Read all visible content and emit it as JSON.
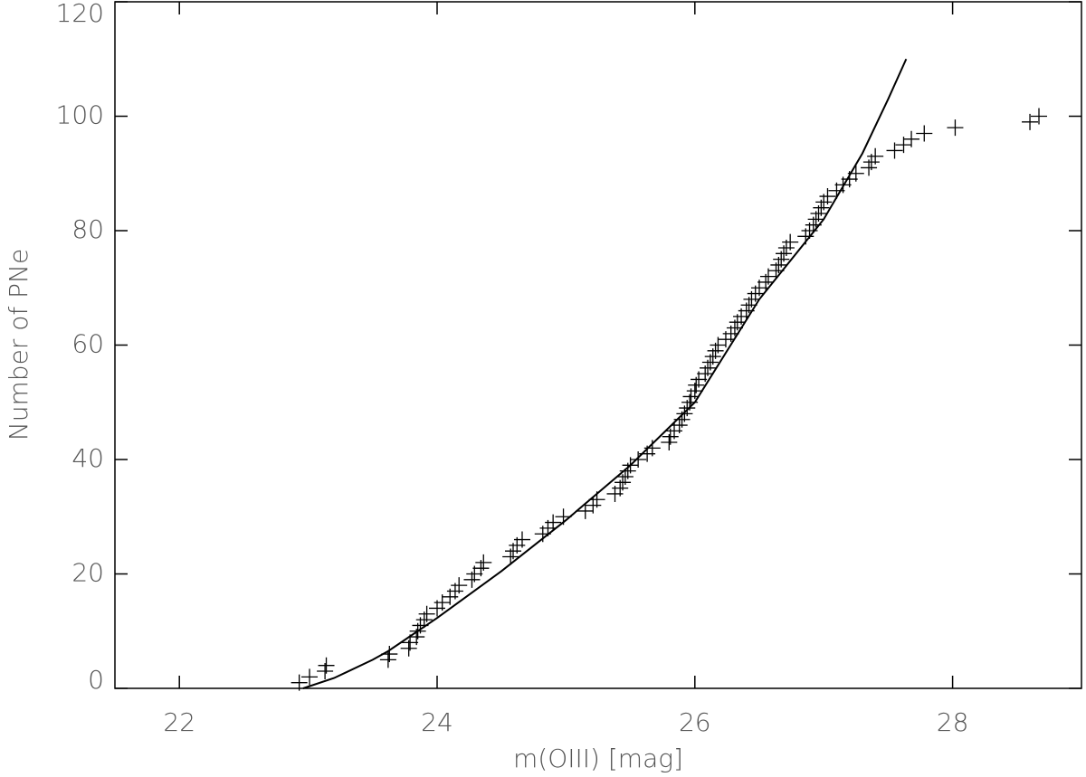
{
  "chart_data": {
    "type": "scatter",
    "x_label": "m(OIII) [mag]",
    "y_label": "Number of PNe",
    "xlim": [
      21.5,
      29.0
    ],
    "ylim": [
      0,
      120
    ],
    "xticks": [
      22,
      24,
      26,
      28
    ],
    "yticks": [
      0,
      20,
      40,
      60,
      80,
      100,
      120
    ],
    "series": [
      {
        "type": "scatter",
        "color": "#000000",
        "x": [
          22.93,
          23.01,
          23.13,
          23.14,
          23.62,
          23.63,
          23.78,
          23.79,
          23.84,
          23.85,
          23.87,
          23.9,
          23.92,
          24.0,
          24.04,
          24.1,
          24.14,
          24.17,
          24.27,
          24.29,
          24.34,
          24.36,
          24.57,
          24.59,
          24.62,
          24.66,
          24.82,
          24.86,
          24.9,
          24.98,
          25.15,
          25.21,
          25.24,
          25.38,
          25.42,
          25.44,
          25.46,
          25.48,
          25.5,
          25.56,
          25.63,
          25.67,
          25.8,
          25.81,
          25.84,
          25.88,
          25.9,
          25.92,
          25.94,
          25.96,
          25.97,
          26.0,
          26.01,
          26.03,
          26.08,
          26.1,
          26.12,
          26.14,
          26.16,
          26.18,
          26.24,
          26.28,
          26.31,
          26.33,
          26.36,
          26.4,
          26.42,
          26.44,
          26.47,
          26.5,
          26.55,
          26.57,
          26.63,
          26.65,
          26.67,
          26.69,
          26.71,
          26.74,
          26.86,
          26.89,
          26.92,
          26.94,
          26.96,
          26.98,
          27.0,
          27.03,
          27.1,
          27.15,
          27.2,
          27.25,
          27.35,
          27.37,
          27.4,
          27.55,
          27.62,
          27.68,
          27.78,
          28.02,
          28.6,
          28.67
        ],
        "values": [
          1,
          2,
          3,
          4,
          5,
          6,
          7,
          8,
          9,
          10,
          11,
          12,
          13,
          14,
          15,
          16,
          17,
          18,
          19,
          20,
          21,
          22,
          23,
          24,
          25,
          26,
          27,
          28,
          29,
          30,
          31,
          32,
          33,
          34,
          35,
          36,
          37,
          38,
          39,
          40,
          41,
          42,
          43,
          44,
          45,
          46,
          47,
          48,
          49,
          50,
          51,
          52,
          53,
          54,
          55,
          56,
          57,
          58,
          59,
          60,
          61,
          62,
          63,
          64,
          65,
          66,
          67,
          68,
          69,
          70,
          71,
          72,
          73,
          74,
          75,
          76,
          77,
          78,
          79,
          80,
          81,
          82,
          83,
          84,
          85,
          86,
          87,
          88,
          89,
          90,
          91,
          92,
          93,
          94,
          95,
          96,
          97,
          98,
          99,
          100
        ]
      },
      {
        "type": "line",
        "color": "#000000",
        "x": [
          22.96,
          23.2,
          23.5,
          23.62,
          24.0,
          24.5,
          25.0,
          25.5,
          26.0,
          26.5,
          27.0,
          27.3,
          27.5,
          27.64
        ],
        "values": [
          0,
          1.8,
          5,
          6.5,
          12.3,
          20.5,
          29.4,
          39,
          50,
          68,
          82,
          93.5,
          103,
          110
        ]
      }
    ]
  }
}
